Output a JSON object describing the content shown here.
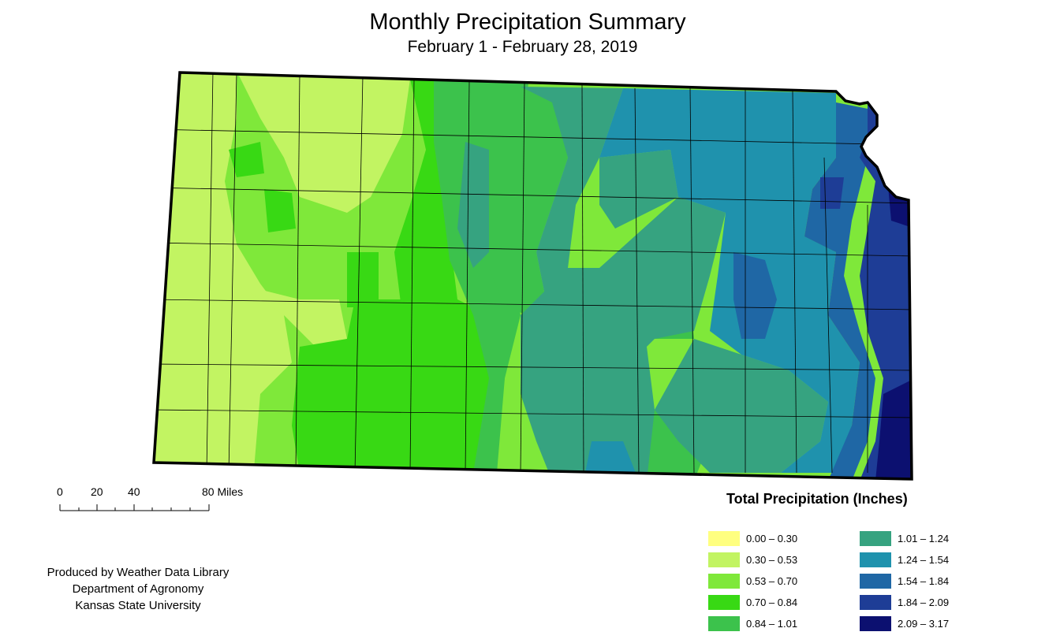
{
  "title": "Monthly Precipitation Summary",
  "subtitle": "February 1 - February 28, 2019",
  "scale": {
    "labels": [
      "0",
      "20",
      "40",
      "80 Miles"
    ]
  },
  "legend": {
    "title": "Total Precipitation (Inches)",
    "items": [
      {
        "label": "0.00 – 0.30",
        "color": "#ffff80"
      },
      {
        "label": "0.30 – 0.53",
        "color": "#c2f462"
      },
      {
        "label": "0.53 – 0.70",
        "color": "#7fe83a"
      },
      {
        "label": "0.70 – 0.84",
        "color": "#38d914"
      },
      {
        "label": "0.84 – 1.01",
        "color": "#3cc24c"
      },
      {
        "label": "1.01 – 1.24",
        "color": "#36a380"
      },
      {
        "label": "1.24 – 1.54",
        "color": "#1f92ad"
      },
      {
        "label": "1.54 – 1.84",
        "color": "#1f67a5"
      },
      {
        "label": "1.84 – 2.09",
        "color": "#1e3d96"
      },
      {
        "label": "2.09 – 3.17",
        "color": "#0c1070"
      }
    ]
  },
  "credit": {
    "line1": "Produced by Weather Data Library",
    "line2": "Department of Agronomy",
    "line3": "Kansas State University"
  }
}
